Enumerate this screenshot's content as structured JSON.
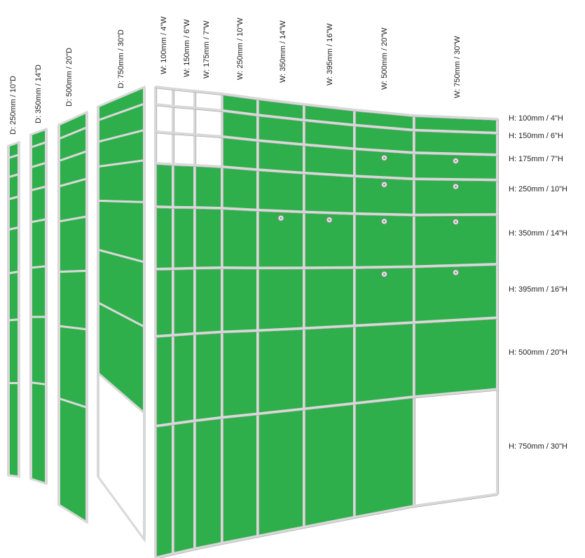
{
  "colors": {
    "panel": "#2FAF4B",
    "frame": "#d8d8d8",
    "frame_edge": "#9a9a9a",
    "text": "#222222",
    "background": "#ffffff"
  },
  "depth_labels": [
    "D: 250mm / 10\"D",
    "D: 350mm / 14\"D",
    "D: 500mm / 20\"D",
    "D: 750mm / 30\"D"
  ],
  "width_labels": [
    "W: 100mm / 4\"W",
    "W: 150mm / 6\"W",
    "W: 175mm / 7\"W",
    "W: 250mm / 10\"W",
    "W: 350mm / 14\"W",
    "W: 395mm / 16\"W",
    "W: 500mm / 20\"W",
    "W: 750mm / 30\"W"
  ],
  "height_labels": [
    "H: 100mm / 4\"H",
    "H: 150mm / 6\"H",
    "H: 175mm / 7\"H",
    "H: 250mm / 10\"H",
    "H: 350mm / 14\"H",
    "H: 395mm / 16\"H",
    "H: 500mm / 20\"H",
    "H: 750mm / 30\"H"
  ],
  "front_grid": {
    "empty_cells": [
      [
        0,
        0
      ],
      [
        0,
        1
      ],
      [
        0,
        2
      ],
      [
        1,
        0
      ],
      [
        1,
        1
      ],
      [
        1,
        2
      ],
      [
        2,
        0
      ],
      [
        2,
        1
      ],
      [
        2,
        2
      ],
      [
        7,
        7
      ]
    ],
    "lock_cells": [
      [
        2,
        6
      ],
      [
        2,
        7
      ],
      [
        3,
        6
      ],
      [
        3,
        7
      ],
      [
        4,
        4
      ],
      [
        4,
        5
      ],
      [
        4,
        6
      ],
      [
        4,
        7
      ],
      [
        5,
        6
      ],
      [
        5,
        7
      ]
    ]
  },
  "side_panels": [
    {
      "rows_empty": []
    },
    {
      "rows_empty": []
    },
    {
      "rows_empty": []
    },
    {
      "rows_empty": [
        7
      ]
    }
  ]
}
